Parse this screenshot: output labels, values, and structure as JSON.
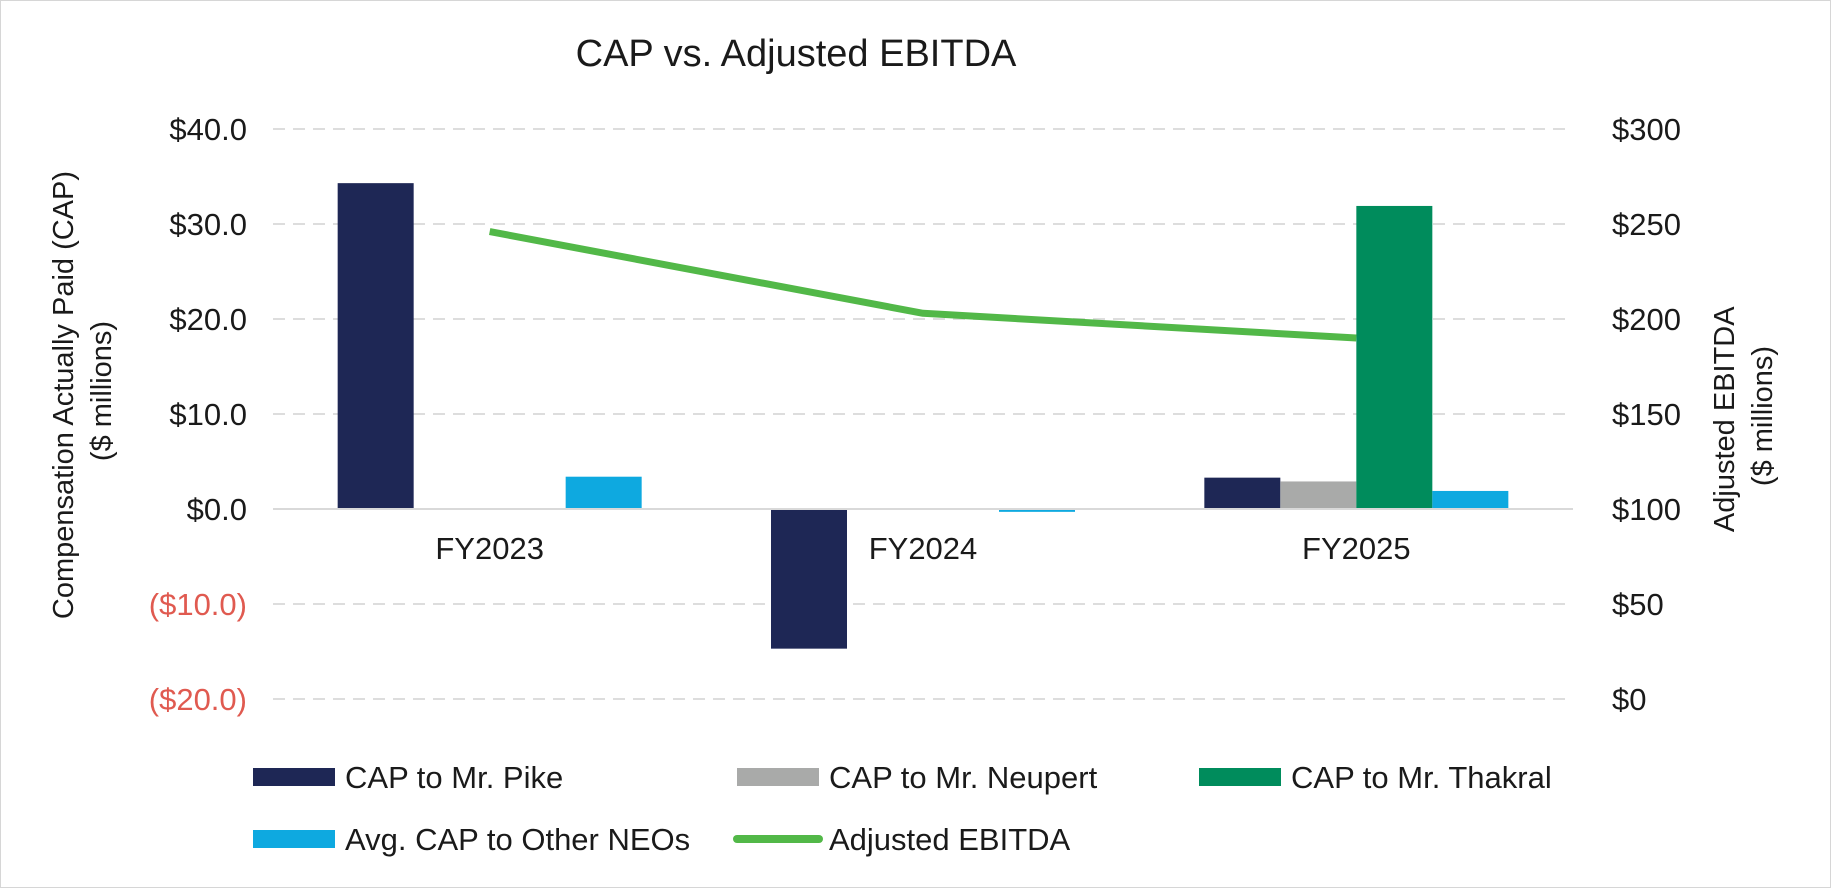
{
  "chart_data": {
    "type": "bar",
    "title": "CAP vs. Adjusted EBITDA",
    "categories": [
      "FY2023",
      "FY2024",
      "FY2025"
    ],
    "y_left": {
      "label_lines": [
        "Compensation Actually Paid (CAP)",
        "($ millions)"
      ],
      "range": [
        -20,
        40
      ],
      "ticks": [
        40,
        30,
        20,
        10,
        0,
        -10,
        -20
      ],
      "tick_labels": [
        "$40.0",
        "$30.0",
        "$20.0",
        "$10.0",
        "$0.0",
        "($10.0)",
        "($20.0)"
      ]
    },
    "y_right": {
      "label_lines": [
        "Adjusted EBITDA",
        "($ millions)"
      ],
      "range": [
        0,
        300
      ],
      "ticks": [
        300,
        250,
        200,
        150,
        100,
        50,
        0
      ],
      "tick_labels": [
        "$300",
        "$250",
        "$200",
        "$150",
        "$100",
        "$50",
        "$0"
      ]
    },
    "grid": true,
    "legend_position": "bottom",
    "negative_tick_color": "#e05a50",
    "series": [
      {
        "name": "CAP to Mr. Pike",
        "type": "bar",
        "axis": "left",
        "color": "#1e2755",
        "values": [
          34.3,
          -14.7,
          3.3
        ]
      },
      {
        "name": "CAP to Mr. Neupert",
        "type": "bar",
        "axis": "left",
        "color": "#a9aaa9",
        "values": [
          null,
          null,
          2.9
        ]
      },
      {
        "name": "CAP to Mr. Thakral",
        "type": "bar",
        "axis": "left",
        "color": "#008c5c",
        "values": [
          null,
          null,
          31.9
        ]
      },
      {
        "name": "Avg. CAP to Other NEOs",
        "type": "bar",
        "axis": "left",
        "color": "#0ea9e0",
        "values": [
          3.4,
          -0.3,
          1.9
        ]
      },
      {
        "name": "Adjusted EBITDA",
        "type": "line",
        "axis": "right",
        "color": "#52b848",
        "values": [
          246,
          203,
          190
        ]
      }
    ]
  }
}
